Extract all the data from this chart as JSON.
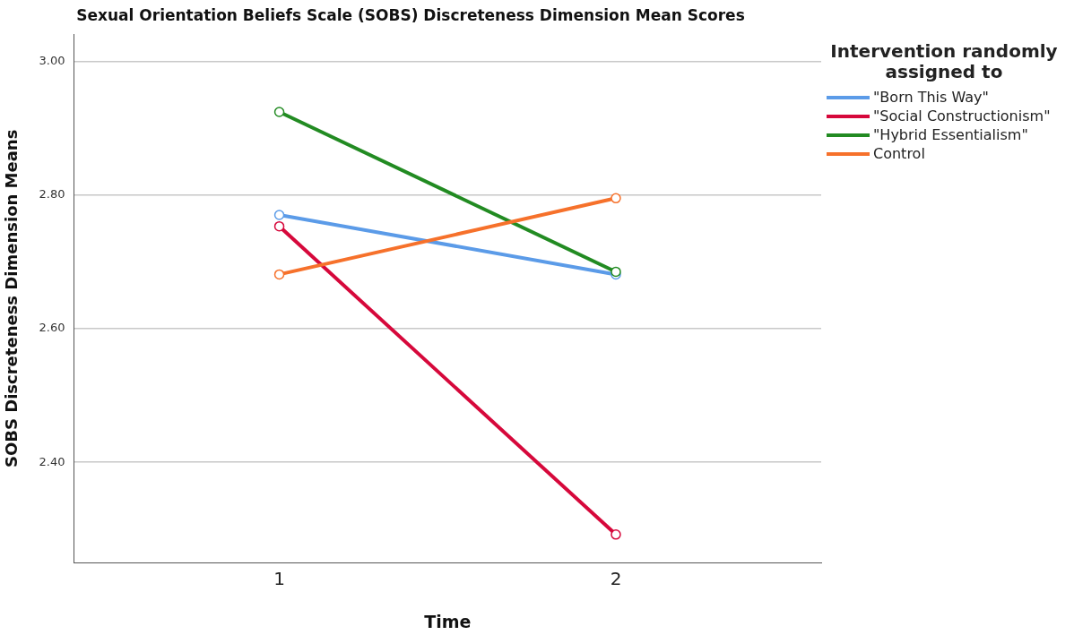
{
  "chart_data": {
    "type": "line",
    "title": "Sexual Orientation Beliefs Scale (SOBS) Discreteness Dimension Mean Scores",
    "xlabel": "Time",
    "ylabel": "SOBS Discreteness Dimension Means",
    "legend_title": "Intervention randomly assigned to",
    "x": [
      1,
      2
    ],
    "xlim": [
      0.39,
      2.61
    ],
    "xticks": [
      1,
      2
    ],
    "ylim": [
      2.25,
      3.04
    ],
    "yticks": [
      {
        "value": 2.4,
        "label": "2.40"
      },
      {
        "value": 2.6,
        "label": "2.60"
      },
      {
        "value": 2.8,
        "label": "2.80"
      },
      {
        "value": 3,
        "label": "3.00"
      }
    ],
    "grid": "y",
    "legend": "top right",
    "marker": "circle",
    "line_style": "solid",
    "series": [
      {
        "name": "\"Born This Way\"",
        "color": "#5b9be8",
        "values": [
          2.77,
          2.681
        ]
      },
      {
        "name": "\"Social Constructionism\"",
        "color": "#d6083b",
        "values": [
          2.753,
          2.292
        ]
      },
      {
        "name": "\"Hybrid Essentialism\"",
        "color": "#228b22",
        "values": [
          2.924,
          2.685
        ]
      },
      {
        "name": "Control",
        "color": "#f6712b",
        "values": [
          2.681,
          2.795
        ]
      }
    ]
  }
}
